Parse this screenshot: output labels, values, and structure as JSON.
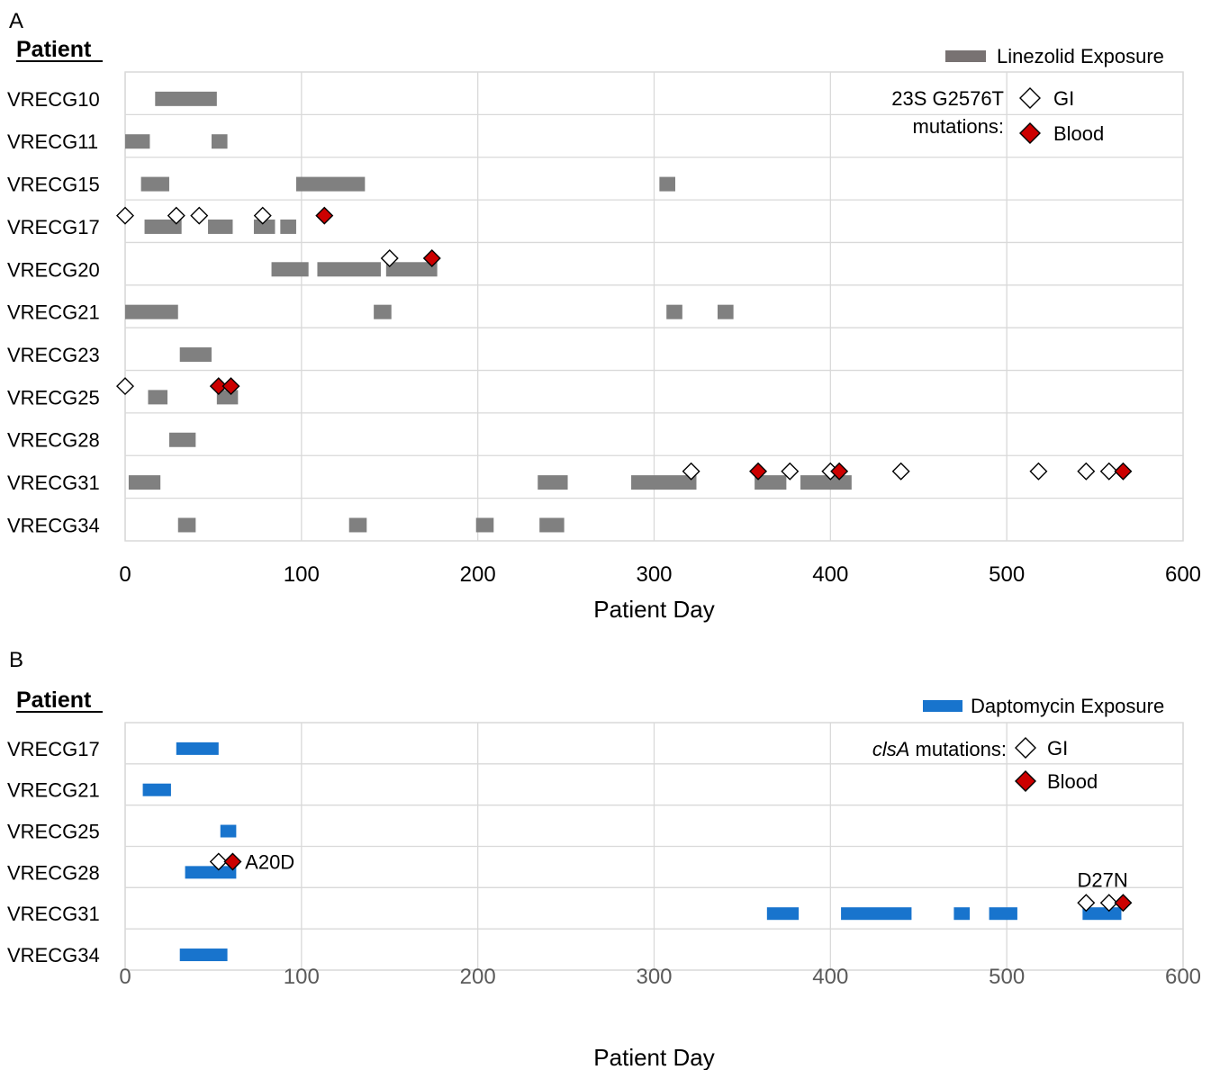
{
  "chart_data": [
    {
      "panel_label": "A",
      "type": "timeline",
      "row_header": "Patient",
      "xlabel": "Patient Day",
      "xlim": [
        0,
        600
      ],
      "xticks": [
        0,
        100,
        200,
        300,
        400,
        500,
        600
      ],
      "grid": true,
      "legend": {
        "placement": "top-right",
        "exposure_label": "Linezolid Exposure",
        "mutation_title_line1": "23S G2576T",
        "mutation_title_line2": "mutations:",
        "gi_label": "GI",
        "blood_label": "Blood"
      },
      "colors": {
        "exposure": "#808080",
        "legend_exposure": "#787272",
        "gi": "#ffffff",
        "blood": "#cc0000",
        "grid": "#d9d9d9"
      },
      "rows": [
        {
          "patient": "VRECG10",
          "exposures": [
            [
              17,
              52
            ]
          ],
          "gi": [],
          "blood": []
        },
        {
          "patient": "VRECG11",
          "exposures": [
            [
              0,
              14
            ],
            [
              49,
              58
            ]
          ],
          "gi": [],
          "blood": []
        },
        {
          "patient": "VRECG15",
          "exposures": [
            [
              9,
              25
            ],
            [
              97,
              136
            ],
            [
              303,
              312
            ]
          ],
          "gi": [],
          "blood": []
        },
        {
          "patient": "VRECG17",
          "exposures": [
            [
              11,
              32
            ],
            [
              47,
              61
            ],
            [
              73,
              85
            ],
            [
              88,
              97
            ]
          ],
          "gi": [
            0,
            29,
            42,
            78
          ],
          "blood": [
            113
          ]
        },
        {
          "patient": "VRECG20",
          "exposures": [
            [
              83,
              104
            ],
            [
              109,
              145
            ],
            [
              148,
              177
            ]
          ],
          "gi": [
            150
          ],
          "blood": [
            174
          ]
        },
        {
          "patient": "VRECG21",
          "exposures": [
            [
              0,
              30
            ],
            [
              141,
              151
            ],
            [
              307,
              316
            ],
            [
              336,
              345
            ]
          ],
          "gi": [],
          "blood": []
        },
        {
          "patient": "VRECG23",
          "exposures": [
            [
              31,
              49
            ]
          ],
          "gi": [],
          "blood": []
        },
        {
          "patient": "VRECG25",
          "exposures": [
            [
              13,
              24
            ],
            [
              52,
              64
            ]
          ],
          "gi": [
            0
          ],
          "blood": [
            53,
            60
          ]
        },
        {
          "patient": "VRECG28",
          "exposures": [
            [
              25,
              40
            ]
          ],
          "gi": [],
          "blood": []
        },
        {
          "patient": "VRECG31",
          "exposures": [
            [
              2,
              20
            ],
            [
              234,
              251
            ],
            [
              287,
              324
            ],
            [
              357,
              375
            ],
            [
              383,
              412
            ]
          ],
          "gi": [
            321,
            377,
            400,
            440,
            518,
            545,
            558
          ],
          "blood": [
            359,
            405,
            566
          ]
        },
        {
          "patient": "VRECG34",
          "exposures": [
            [
              30,
              40
            ],
            [
              127,
              137
            ],
            [
              199,
              209
            ],
            [
              235,
              249
            ]
          ],
          "gi": [],
          "blood": []
        }
      ]
    },
    {
      "panel_label": "B",
      "type": "timeline",
      "row_header": "Patient",
      "xlabel": "Patient Day",
      "xlim": [
        0,
        600
      ],
      "xticks": [
        0,
        100,
        200,
        300,
        400,
        500,
        600
      ],
      "grid": true,
      "legend": {
        "placement": "top-right",
        "exposure_label": "Daptomycin Exposure",
        "mutation_title_italic": "clsA",
        "mutation_title_rest": " mutations:",
        "gi_label": "GI",
        "blood_label": "Blood"
      },
      "colors": {
        "exposure": "#1874cd",
        "gi": "#ffffff",
        "blood": "#cc0000",
        "grid": "#d9d9d9"
      },
      "rows": [
        {
          "patient": "VRECG17",
          "exposures": [
            [
              29,
              53
            ]
          ],
          "gi": [],
          "blood": []
        },
        {
          "patient": "VRECG21",
          "exposures": [
            [
              10,
              26
            ]
          ],
          "gi": [],
          "blood": []
        },
        {
          "patient": "VRECG25",
          "exposures": [
            [
              54,
              63
            ]
          ],
          "gi": [],
          "blood": []
        },
        {
          "patient": "VRECG28",
          "exposures": [
            [
              34,
              63
            ]
          ],
          "gi": [
            53
          ],
          "blood": [
            61
          ],
          "annotation": {
            "text": "A20D",
            "day": 68
          }
        },
        {
          "patient": "VRECG31",
          "exposures": [
            [
              364,
              382
            ],
            [
              406,
              446
            ],
            [
              470,
              479
            ],
            [
              490,
              506
            ],
            [
              543,
              565
            ]
          ],
          "gi": [
            545,
            558
          ],
          "blood": [
            566
          ],
          "annotation": {
            "text": "D27N",
            "day": 540
          }
        },
        {
          "patient": "VRECG34",
          "exposures": [
            [
              31,
              58
            ]
          ],
          "gi": [],
          "blood": []
        }
      ]
    }
  ]
}
